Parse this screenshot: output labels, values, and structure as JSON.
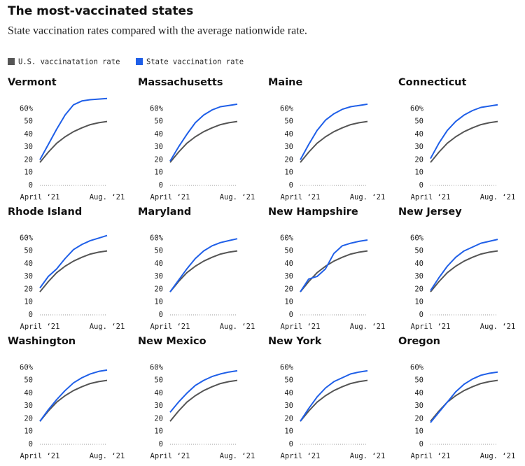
{
  "title": "The most-vaccinated states",
  "subtitle": "State vaccination rates compared with the average nationwide rate.",
  "chart_data": [
    {
      "type": "line",
      "title": "Vermont",
      "categories": [
        "April ‘21",
        null,
        null,
        null,
        null,
        null,
        null,
        null,
        "Aug. ‘21"
      ],
      "ylim": [
        0,
        70
      ],
      "yticks": [
        0,
        10,
        20,
        30,
        40,
        50,
        {
          "value": 60,
          "label": "60%"
        }
      ],
      "grid": false,
      "series": [
        {
          "name": "U.S. vaccinatation rate",
          "color": "#555555",
          "values": [
            18,
            26,
            33,
            38,
            42,
            45,
            47.5,
            49,
            50
          ]
        },
        {
          "name": "State vaccination rate",
          "color": "#1f5fe8",
          "values": [
            20,
            32,
            44,
            55,
            63,
            66,
            67,
            67.5,
            68
          ]
        }
      ]
    },
    {
      "type": "line",
      "title": "Massachusetts",
      "categories": [
        "April ‘21",
        null,
        null,
        null,
        null,
        null,
        null,
        null,
        "Aug. ‘21"
      ],
      "ylim": [
        0,
        70
      ],
      "yticks": [
        0,
        10,
        20,
        30,
        40,
        50,
        {
          "value": 60,
          "label": "60%"
        }
      ],
      "grid": false,
      "series": [
        {
          "name": "U.S. vaccinatation rate",
          "color": "#555555",
          "values": [
            18,
            26,
            33,
            38,
            42,
            45,
            47.5,
            49,
            50
          ]
        },
        {
          "name": "State vaccination rate",
          "color": "#1f5fe8",
          "values": [
            19,
            30,
            40,
            49,
            55,
            59,
            61.5,
            62.5,
            63.5
          ]
        }
      ]
    },
    {
      "type": "line",
      "title": "Maine",
      "categories": [
        "April ‘21",
        null,
        null,
        null,
        null,
        null,
        null,
        null,
        "Aug. ‘21"
      ],
      "ylim": [
        0,
        70
      ],
      "yticks": [
        0,
        10,
        20,
        30,
        40,
        50,
        {
          "value": 60,
          "label": "60%"
        }
      ],
      "grid": false,
      "series": [
        {
          "name": "U.S. vaccinatation rate",
          "color": "#555555",
          "values": [
            18,
            26,
            33,
            38,
            42,
            45,
            47.5,
            49,
            50
          ]
        },
        {
          "name": "State vaccination rate",
          "color": "#1f5fe8",
          "values": [
            20,
            32,
            43,
            51,
            56,
            59.5,
            61.5,
            62.5,
            63.5
          ]
        }
      ]
    },
    {
      "type": "line",
      "title": "Connecticut",
      "categories": [
        "April ‘21",
        null,
        null,
        null,
        null,
        null,
        null,
        null,
        "Aug. ‘21"
      ],
      "ylim": [
        0,
        70
      ],
      "yticks": [
        0,
        10,
        20,
        30,
        40,
        50,
        {
          "value": 60,
          "label": "60%"
        }
      ],
      "grid": false,
      "series": [
        {
          "name": "U.S. vaccinatation rate",
          "color": "#555555",
          "values": [
            18,
            26,
            33,
            38,
            42,
            45,
            47.5,
            49,
            50
          ]
        },
        {
          "name": "State vaccination rate",
          "color": "#1f5fe8",
          "values": [
            21,
            33,
            43,
            50,
            55,
            58.5,
            61,
            62,
            63
          ]
        }
      ]
    },
    {
      "type": "line",
      "title": "Rhode Island",
      "categories": [
        "April ‘21",
        null,
        null,
        null,
        null,
        null,
        null,
        null,
        "Aug. ‘21"
      ],
      "ylim": [
        0,
        70
      ],
      "yticks": [
        0,
        10,
        20,
        30,
        40,
        50,
        {
          "value": 60,
          "label": "60%"
        }
      ],
      "grid": false,
      "series": [
        {
          "name": "U.S. vaccinatation rate",
          "color": "#555555",
          "values": [
            18,
            26,
            33,
            38,
            42,
            45,
            47.5,
            49,
            50
          ]
        },
        {
          "name": "State vaccination rate",
          "color": "#1f5fe8",
          "values": [
            21,
            30,
            36,
            44,
            51,
            55,
            58,
            60,
            62
          ]
        }
      ]
    },
    {
      "type": "line",
      "title": "Maryland",
      "categories": [
        "April ‘21",
        null,
        null,
        null,
        null,
        null,
        null,
        null,
        "Aug. ‘21"
      ],
      "ylim": [
        0,
        70
      ],
      "yticks": [
        0,
        10,
        20,
        30,
        40,
        50,
        {
          "value": 60,
          "label": "60%"
        }
      ],
      "grid": false,
      "series": [
        {
          "name": "U.S. vaccinatation rate",
          "color": "#555555",
          "values": [
            18,
            26,
            33,
            38,
            42,
            45,
            47.5,
            49,
            50
          ]
        },
        {
          "name": "State vaccination rate",
          "color": "#1f5fe8",
          "values": [
            18,
            27,
            36,
            44,
            50,
            54,
            56.5,
            58,
            59.5
          ]
        }
      ]
    },
    {
      "type": "line",
      "title": "New Hampshire",
      "categories": [
        "April ‘21",
        null,
        null,
        null,
        null,
        null,
        null,
        null,
        "Aug. ‘21"
      ],
      "ylim": [
        0,
        70
      ],
      "yticks": [
        0,
        10,
        20,
        30,
        40,
        50,
        {
          "value": 60,
          "label": "60%"
        }
      ],
      "grid": false,
      "series": [
        {
          "name": "U.S. vaccinatation rate",
          "color": "#555555",
          "values": [
            18,
            26,
            33,
            38,
            42,
            45,
            47.5,
            49,
            50
          ]
        },
        {
          "name": "State vaccination rate",
          "color": "#1f5fe8",
          "values": [
            18,
            28,
            30,
            36,
            48,
            54,
            56,
            57.5,
            58.5
          ]
        }
      ]
    },
    {
      "type": "line",
      "title": "New Jersey",
      "categories": [
        "April ‘21",
        null,
        null,
        null,
        null,
        null,
        null,
        null,
        "Aug. ‘21"
      ],
      "ylim": [
        0,
        70
      ],
      "yticks": [
        0,
        10,
        20,
        30,
        40,
        50,
        {
          "value": 60,
          "label": "60%"
        }
      ],
      "grid": false,
      "series": [
        {
          "name": "U.S. vaccinatation rate",
          "color": "#555555",
          "values": [
            18,
            26,
            33,
            38,
            42,
            45,
            47.5,
            49,
            50
          ]
        },
        {
          "name": "State vaccination rate",
          "color": "#1f5fe8",
          "values": [
            19,
            29,
            38,
            45,
            50,
            53,
            56,
            57.5,
            59
          ]
        }
      ]
    },
    {
      "type": "line",
      "title": "Washington",
      "categories": [
        "April ‘21",
        null,
        null,
        null,
        null,
        null,
        null,
        null,
        "Aug. ‘21"
      ],
      "ylim": [
        0,
        70
      ],
      "yticks": [
        0,
        10,
        20,
        30,
        40,
        50,
        {
          "value": 60,
          "label": "60%"
        }
      ],
      "grid": false,
      "series": [
        {
          "name": "U.S. vaccinatation rate",
          "color": "#555555",
          "values": [
            18,
            26,
            33,
            38,
            42,
            45,
            47.5,
            49,
            50
          ]
        },
        {
          "name": "State vaccination rate",
          "color": "#1f5fe8",
          "values": [
            18,
            27,
            35,
            42,
            48,
            52,
            55,
            57,
            58
          ]
        }
      ]
    },
    {
      "type": "line",
      "title": "New Mexico",
      "categories": [
        "April ‘21",
        null,
        null,
        null,
        null,
        null,
        null,
        null,
        "Aug. ‘21"
      ],
      "ylim": [
        0,
        70
      ],
      "yticks": [
        0,
        10,
        20,
        30,
        40,
        50,
        {
          "value": 60,
          "label": "60%"
        }
      ],
      "grid": false,
      "series": [
        {
          "name": "U.S. vaccinatation rate",
          "color": "#555555",
          "values": [
            18,
            26,
            33,
            38,
            42,
            45,
            47.5,
            49,
            50
          ]
        },
        {
          "name": "State vaccination rate",
          "color": "#1f5fe8",
          "values": [
            25,
            33,
            40,
            46,
            50,
            53,
            55,
            56.5,
            57.5
          ]
        }
      ]
    },
    {
      "type": "line",
      "title": "New York",
      "categories": [
        "April ‘21",
        null,
        null,
        null,
        null,
        null,
        null,
        null,
        "Aug. ‘21"
      ],
      "ylim": [
        0,
        70
      ],
      "yticks": [
        0,
        10,
        20,
        30,
        40,
        50,
        {
          "value": 60,
          "label": "60%"
        }
      ],
      "grid": false,
      "series": [
        {
          "name": "U.S. vaccinatation rate",
          "color": "#555555",
          "values": [
            18,
            26,
            33,
            38,
            42,
            45,
            47.5,
            49,
            50
          ]
        },
        {
          "name": "State vaccination rate",
          "color": "#1f5fe8",
          "values": [
            18,
            28,
            37,
            44,
            49,
            52,
            55,
            56.5,
            57.5
          ]
        }
      ]
    },
    {
      "type": "line",
      "title": "Oregon",
      "categories": [
        "April ‘21",
        null,
        null,
        null,
        null,
        null,
        null,
        null,
        "Aug. ‘21"
      ],
      "ylim": [
        0,
        70
      ],
      "yticks": [
        0,
        10,
        20,
        30,
        40,
        50,
        {
          "value": 60,
          "label": "60%"
        }
      ],
      "grid": false,
      "series": [
        {
          "name": "U.S. vaccinatation rate",
          "color": "#555555",
          "values": [
            18,
            26,
            33,
            38,
            42,
            45,
            47.5,
            49,
            50
          ]
        },
        {
          "name": "State vaccination rate",
          "color": "#1f5fe8",
          "values": [
            17,
            25,
            33,
            41,
            47,
            51,
            54,
            55.5,
            56.5
          ]
        }
      ]
    }
  ]
}
